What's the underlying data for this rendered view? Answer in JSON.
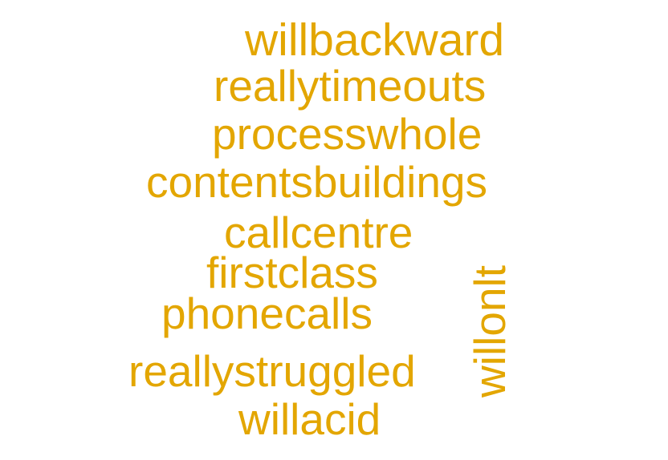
{
  "word_color": "#E3A600",
  "words": [
    "willbackward",
    "reallytimeouts",
    "processwhole",
    "contentsbuildings",
    "callcentre",
    "firstclass",
    "phonecalls",
    "willonlt",
    "reallystruggled",
    "willacid"
  ]
}
